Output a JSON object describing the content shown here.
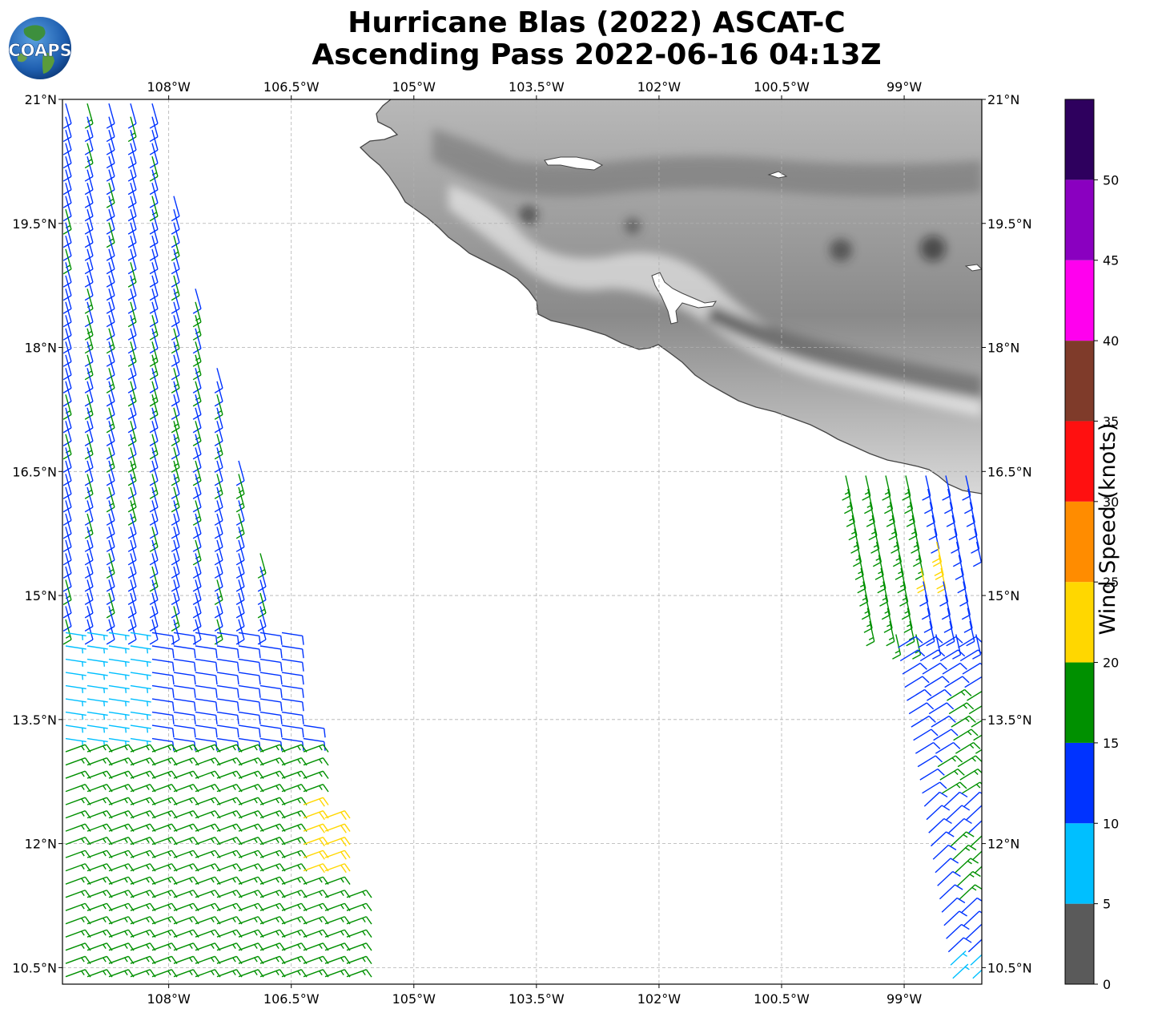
{
  "title": {
    "line1": "Hurricane Blas (2022) ASCAT-C",
    "line2": "Ascending Pass 2022-06-16 04:13Z"
  },
  "logo": {
    "text": "COAPS",
    "icon": "globe-icon"
  },
  "map": {
    "lon_labels": [
      "108°W",
      "106.5°W",
      "105°W",
      "103.5°W",
      "102°W",
      "100.5°W",
      "99°W"
    ],
    "lat_labels": [
      "21°N",
      "19.5°N",
      "18°N",
      "16.5°N",
      "15°N",
      "13.5°N",
      "12°N",
      "10.5°N"
    ],
    "lon_values": [
      -108,
      -106.5,
      -105,
      -103.5,
      -102,
      -100.5,
      -99
    ],
    "lat_values": [
      21,
      19.5,
      18,
      16.5,
      15,
      13.5,
      12,
      10.5
    ],
    "extent": {
      "lon_min": -109.3,
      "lon_max": -98.05,
      "lat_min": 10.3,
      "lat_max": 21.0
    }
  },
  "colorbar": {
    "label": "Wind Speed (knots)",
    "tick_labels": [
      "0",
      "5",
      "10",
      "15",
      "20",
      "25",
      "30",
      "35",
      "40",
      "45",
      "50"
    ],
    "bins": [
      {
        "from": 0,
        "to": 5,
        "color": "#5a5a5a"
      },
      {
        "from": 5,
        "to": 10,
        "color": "#00bfff"
      },
      {
        "from": 10,
        "to": 15,
        "color": "#0033ff"
      },
      {
        "from": 15,
        "to": 20,
        "color": "#009000"
      },
      {
        "from": 20,
        "to": 25,
        "color": "#ffd700"
      },
      {
        "from": 25,
        "to": 30,
        "color": "#ff8c00"
      },
      {
        "from": 30,
        "to": 35,
        "color": "#ff1010"
      },
      {
        "from": 35,
        "to": 40,
        "color": "#7f3b2a"
      },
      {
        "from": 40,
        "to": 45,
        "color": "#ff00ee"
      },
      {
        "from": 45,
        "to": 50,
        "color": "#8a00c0"
      },
      {
        "from": 50,
        "to": 55,
        "color": "#2e005e"
      }
    ]
  }
}
